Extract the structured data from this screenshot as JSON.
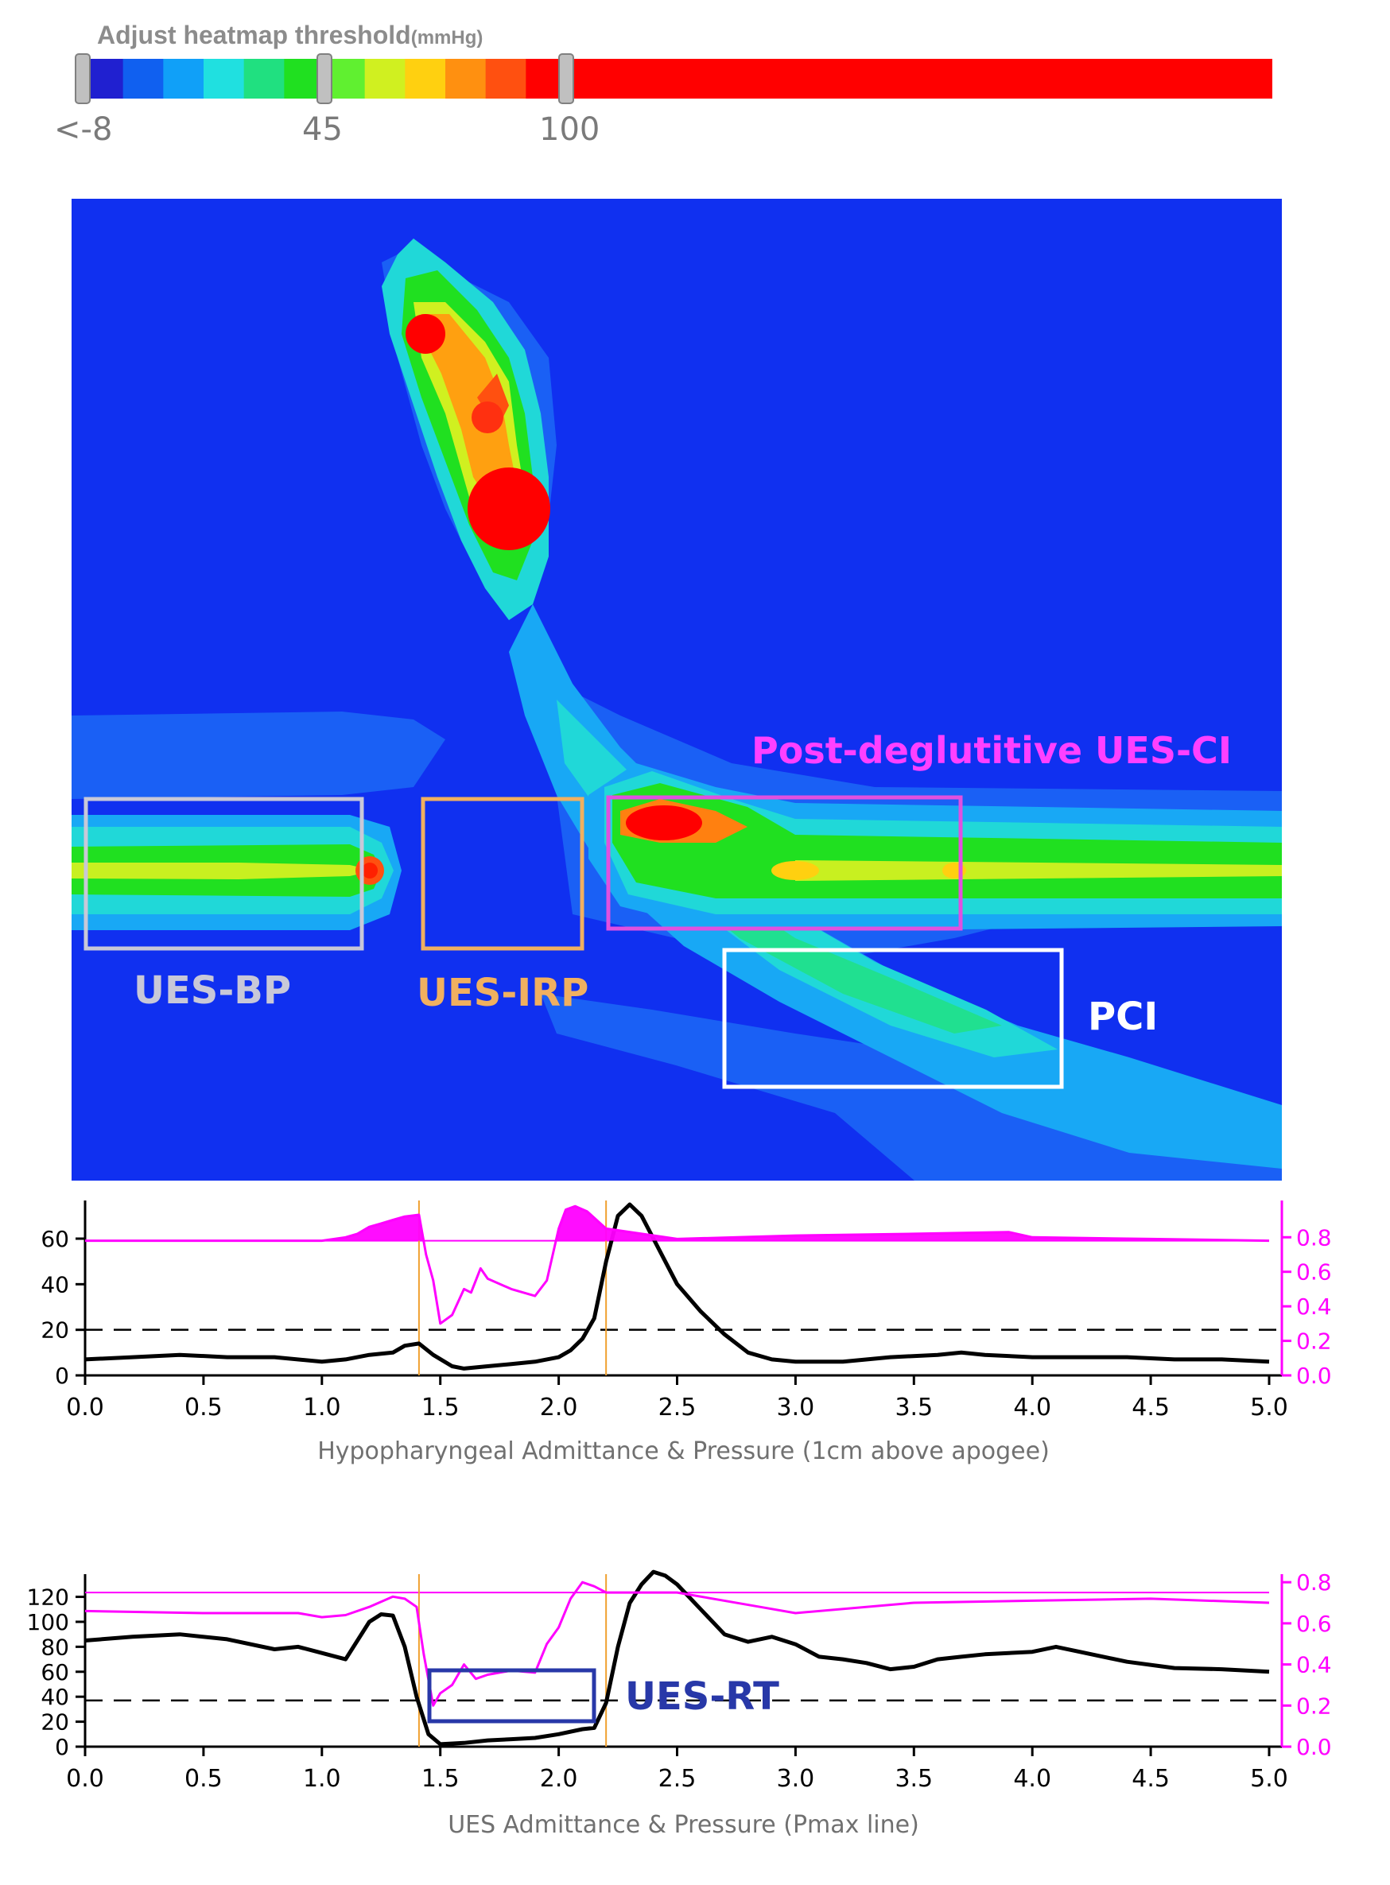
{
  "colorbar": {
    "title": "Adjust heatmap threshold",
    "unit": "(mmHg)",
    "tick_labels": [
      "<-8",
      "45",
      "100"
    ],
    "colors": [
      "#2020d0",
      "#1060f0",
      "#10a0f8",
      "#20e0e0",
      "#20e080",
      "#20e020",
      "#60f030",
      "#d0f020",
      "#ffd010",
      "#ff9010",
      "#ff5010",
      "#ff0000"
    ]
  },
  "heatmap": {
    "background": "#1030f0",
    "annotations": [
      {
        "label": "UES-BP",
        "color": "#c8c8d8"
      },
      {
        "label": "UES-IRP",
        "color": "#f0b060"
      },
      {
        "label": "Post-deglutitive UES-CI",
        "color": "#ff40ff"
      },
      {
        "label": "PCI",
        "color": "#ffffff"
      }
    ]
  },
  "chart_data": [
    {
      "type": "line",
      "xlabel": "Hypopharyngeal Admittance & Pressure (1cm above apogee)",
      "xlim": [
        0,
        5.0
      ],
      "x_ticks": [
        "0.0",
        "0.5",
        "1.0",
        "1.5",
        "2.0",
        "2.5",
        "3.0",
        "3.5",
        "4.0",
        "4.5",
        "5.0"
      ],
      "y_left_ticks": [
        "0",
        "20",
        "40",
        "60"
      ],
      "y_left_lim": [
        0,
        75
      ],
      "y_right_ticks": [
        "0.0",
        "0.2",
        "0.4",
        "0.6",
        "0.8"
      ],
      "y_right_lim": [
        0,
        0.99
      ],
      "dashed_threshold_left": 20,
      "baseline_right": 0.78,
      "event_lines_x": [
        1.41,
        2.2
      ],
      "series": [
        {
          "axis": "left",
          "color": "#000000",
          "x": [
            0.0,
            0.2,
            0.4,
            0.6,
            0.8,
            1.0,
            1.1,
            1.2,
            1.3,
            1.35,
            1.41,
            1.47,
            1.55,
            1.6,
            1.7,
            1.8,
            1.9,
            2.0,
            2.05,
            2.1,
            2.15,
            2.2,
            2.25,
            2.3,
            2.35,
            2.4,
            2.5,
            2.6,
            2.7,
            2.8,
            2.9,
            3.0,
            3.2,
            3.4,
            3.6,
            3.7,
            3.8,
            4.0,
            4.2,
            4.4,
            4.6,
            4.8,
            5.0
          ],
          "y": [
            7,
            8,
            9,
            8,
            8,
            6,
            7,
            9,
            10,
            13,
            14,
            9,
            4,
            3,
            4,
            5,
            6,
            8,
            11,
            16,
            25,
            50,
            70,
            75,
            70,
            60,
            40,
            28,
            18,
            10,
            7,
            6,
            6,
            8,
            9,
            10,
            9,
            8,
            8,
            8,
            7,
            7,
            6
          ]
        },
        {
          "axis": "right",
          "color": "#ff00ff",
          "x": [
            0.0,
            0.5,
            1.0,
            1.1,
            1.15,
            1.2,
            1.25,
            1.3,
            1.35,
            1.41,
            1.44,
            1.47,
            1.5,
            1.55,
            1.6,
            1.63,
            1.67,
            1.7,
            1.8,
            1.9,
            1.95,
            2.0,
            2.03,
            2.07,
            2.12,
            2.16,
            2.2,
            2.5,
            3.0,
            3.5,
            3.9,
            4.0,
            4.5,
            5.0
          ],
          "y": [
            0.78,
            0.78,
            0.78,
            0.8,
            0.82,
            0.86,
            0.88,
            0.9,
            0.92,
            0.93,
            0.7,
            0.55,
            0.3,
            0.35,
            0.5,
            0.48,
            0.62,
            0.56,
            0.5,
            0.46,
            0.55,
            0.85,
            0.96,
            0.98,
            0.95,
            0.9,
            0.85,
            0.79,
            0.81,
            0.82,
            0.83,
            0.8,
            0.79,
            0.78
          ]
        }
      ]
    },
    {
      "type": "line",
      "xlabel": "UES Admittance & Pressure (Pmax line)",
      "xlim": [
        0,
        5.0
      ],
      "x_ticks": [
        "0.0",
        "0.5",
        "1.0",
        "1.5",
        "2.0",
        "2.5",
        "3.0",
        "3.5",
        "4.0",
        "4.5",
        "5.0"
      ],
      "y_left_ticks": [
        "0",
        "20",
        "40",
        "60",
        "80",
        "100",
        "120"
      ],
      "y_left_lim": [
        0,
        135
      ],
      "y_right_ticks": [
        "0.0",
        "0.2",
        "0.4",
        "0.6",
        "0.8"
      ],
      "y_right_lim": [
        0,
        0.82
      ],
      "dashed_threshold_left": 37,
      "baseline_right": 0.75,
      "event_lines_x": [
        1.41,
        2.2
      ],
      "series": [
        {
          "axis": "left",
          "color": "#000000",
          "x": [
            0.0,
            0.2,
            0.4,
            0.6,
            0.8,
            0.9,
            1.0,
            1.1,
            1.2,
            1.25,
            1.3,
            1.35,
            1.4,
            1.45,
            1.5,
            1.6,
            1.7,
            1.8,
            1.9,
            2.0,
            2.1,
            2.15,
            2.2,
            2.25,
            2.3,
            2.35,
            2.4,
            2.45,
            2.5,
            2.6,
            2.7,
            2.8,
            2.9,
            3.0,
            3.1,
            3.2,
            3.3,
            3.4,
            3.5,
            3.6,
            3.7,
            3.8,
            4.0,
            4.1,
            4.2,
            4.4,
            4.6,
            4.8,
            5.0
          ],
          "y": [
            85,
            88,
            90,
            86,
            78,
            80,
            75,
            70,
            100,
            106,
            105,
            80,
            40,
            10,
            2,
            3,
            5,
            6,
            7,
            10,
            14,
            15,
            35,
            80,
            115,
            130,
            140,
            137,
            130,
            110,
            90,
            84,
            88,
            82,
            72,
            70,
            67,
            62,
            64,
            70,
            72,
            74,
            76,
            80,
            76,
            68,
            63,
            62,
            60
          ]
        },
        {
          "axis": "right",
          "color": "#ff00ff",
          "x": [
            0.0,
            0.5,
            0.9,
            1.0,
            1.1,
            1.2,
            1.3,
            1.35,
            1.4,
            1.43,
            1.47,
            1.5,
            1.55,
            1.6,
            1.65,
            1.7,
            1.8,
            1.9,
            1.95,
            2.0,
            2.05,
            2.1,
            2.15,
            2.2,
            2.5,
            2.85,
            3.0,
            3.5,
            4.0,
            4.5,
            5.0
          ],
          "y": [
            0.66,
            0.65,
            0.65,
            0.63,
            0.64,
            0.68,
            0.73,
            0.72,
            0.68,
            0.45,
            0.2,
            0.26,
            0.3,
            0.4,
            0.33,
            0.35,
            0.37,
            0.36,
            0.5,
            0.58,
            0.72,
            0.8,
            0.78,
            0.75,
            0.75,
            0.68,
            0.65,
            0.7,
            0.71,
            0.72,
            0.7
          ]
        }
      ]
    }
  ],
  "rt_box": {
    "label": "UES-RT",
    "color": "#2838a8"
  }
}
